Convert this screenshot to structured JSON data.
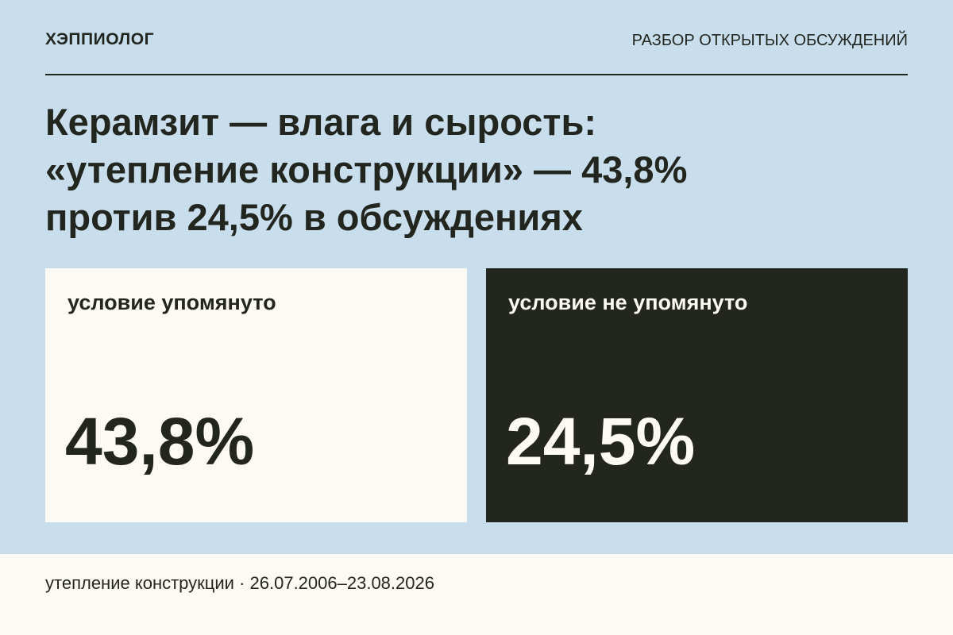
{
  "header": {
    "brand": "ХЭППИОЛОГ",
    "section": "РАЗБОР ОТКРЫТЫХ ОБСУЖДЕНИЙ"
  },
  "title": {
    "lines": [
      "Керамзит — влага и сырость:",
      "«утепление конструкции» — 43,8%",
      "против 24,5% в обсуждениях"
    ]
  },
  "cards": [
    {
      "label": "условие упомянуто",
      "value": "43,8%"
    },
    {
      "label": "условие не упомянуто",
      "value": "24,5%"
    }
  ],
  "footer": {
    "text": "утепление конструкции · 26.07.2006–23.08.2026"
  }
}
